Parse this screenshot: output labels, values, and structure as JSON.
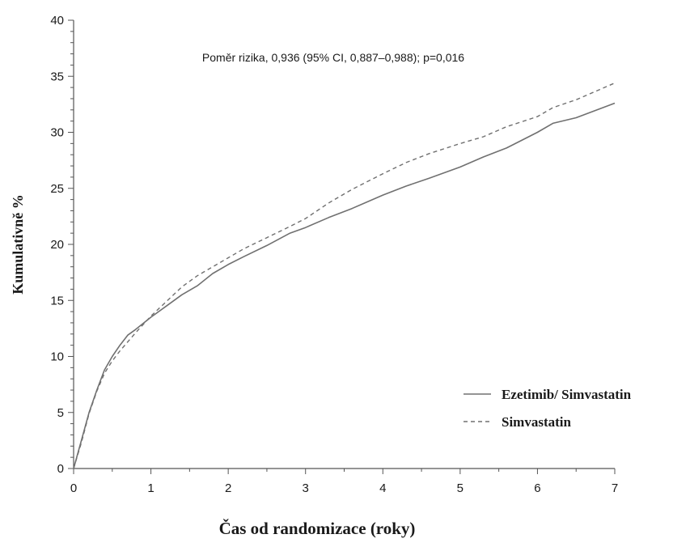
{
  "chart_data": {
    "type": "line",
    "annotation": "Poměr rizika, 0,936 (95% CI, 0,887–0,988); p=0,016",
    "xlabel": "Čas od randomizace (roky)",
    "ylabel": "Kumulativně %",
    "xlim": [
      0,
      7
    ],
    "ylim": [
      0,
      40
    ],
    "xticks": [
      0,
      1,
      2,
      3,
      4,
      5,
      6,
      7
    ],
    "yticks": [
      0,
      5,
      10,
      15,
      20,
      25,
      30,
      35,
      40
    ],
    "legend_position": "bottom-right",
    "grid": false,
    "series": [
      {
        "name": "Ezetimib/ Simvastatin",
        "style": "solid",
        "color": "#707070",
        "x": [
          0,
          0.1,
          0.2,
          0.3,
          0.4,
          0.5,
          0.6,
          0.7,
          0.8,
          1.0,
          1.2,
          1.4,
          1.6,
          1.8,
          2.0,
          2.2,
          2.5,
          2.8,
          3.0,
          3.3,
          3.6,
          4.0,
          4.3,
          4.6,
          5.0,
          5.3,
          5.6,
          6.0,
          6.2,
          6.5,
          7.0
        ],
        "y": [
          0,
          2.5,
          5.0,
          7.0,
          8.8,
          10.0,
          11.0,
          11.9,
          12.4,
          13.5,
          14.5,
          15.5,
          16.3,
          17.4,
          18.2,
          18.9,
          19.9,
          21.0,
          21.5,
          22.4,
          23.2,
          24.4,
          25.2,
          25.9,
          26.9,
          27.8,
          28.6,
          30.0,
          30.8,
          31.3,
          32.6
        ]
      },
      {
        "name": "Simvastatin",
        "style": "dashed",
        "color": "#707070",
        "x": [
          0,
          0.1,
          0.2,
          0.3,
          0.4,
          0.5,
          0.6,
          0.7,
          0.8,
          1.0,
          1.2,
          1.4,
          1.6,
          1.8,
          2.0,
          2.2,
          2.5,
          2.8,
          3.0,
          3.3,
          3.6,
          4.0,
          4.3,
          4.6,
          5.0,
          5.3,
          5.6,
          6.0,
          6.2,
          6.5,
          7.0
        ],
        "y": [
          0,
          2.3,
          4.9,
          6.9,
          8.5,
          9.6,
          10.5,
          11.3,
          12.1,
          13.6,
          14.9,
          16.2,
          17.2,
          18.0,
          18.8,
          19.6,
          20.6,
          21.6,
          22.3,
          23.7,
          24.9,
          26.3,
          27.3,
          28.1,
          29.0,
          29.6,
          30.5,
          31.4,
          32.2,
          32.9,
          34.4
        ]
      }
    ]
  }
}
